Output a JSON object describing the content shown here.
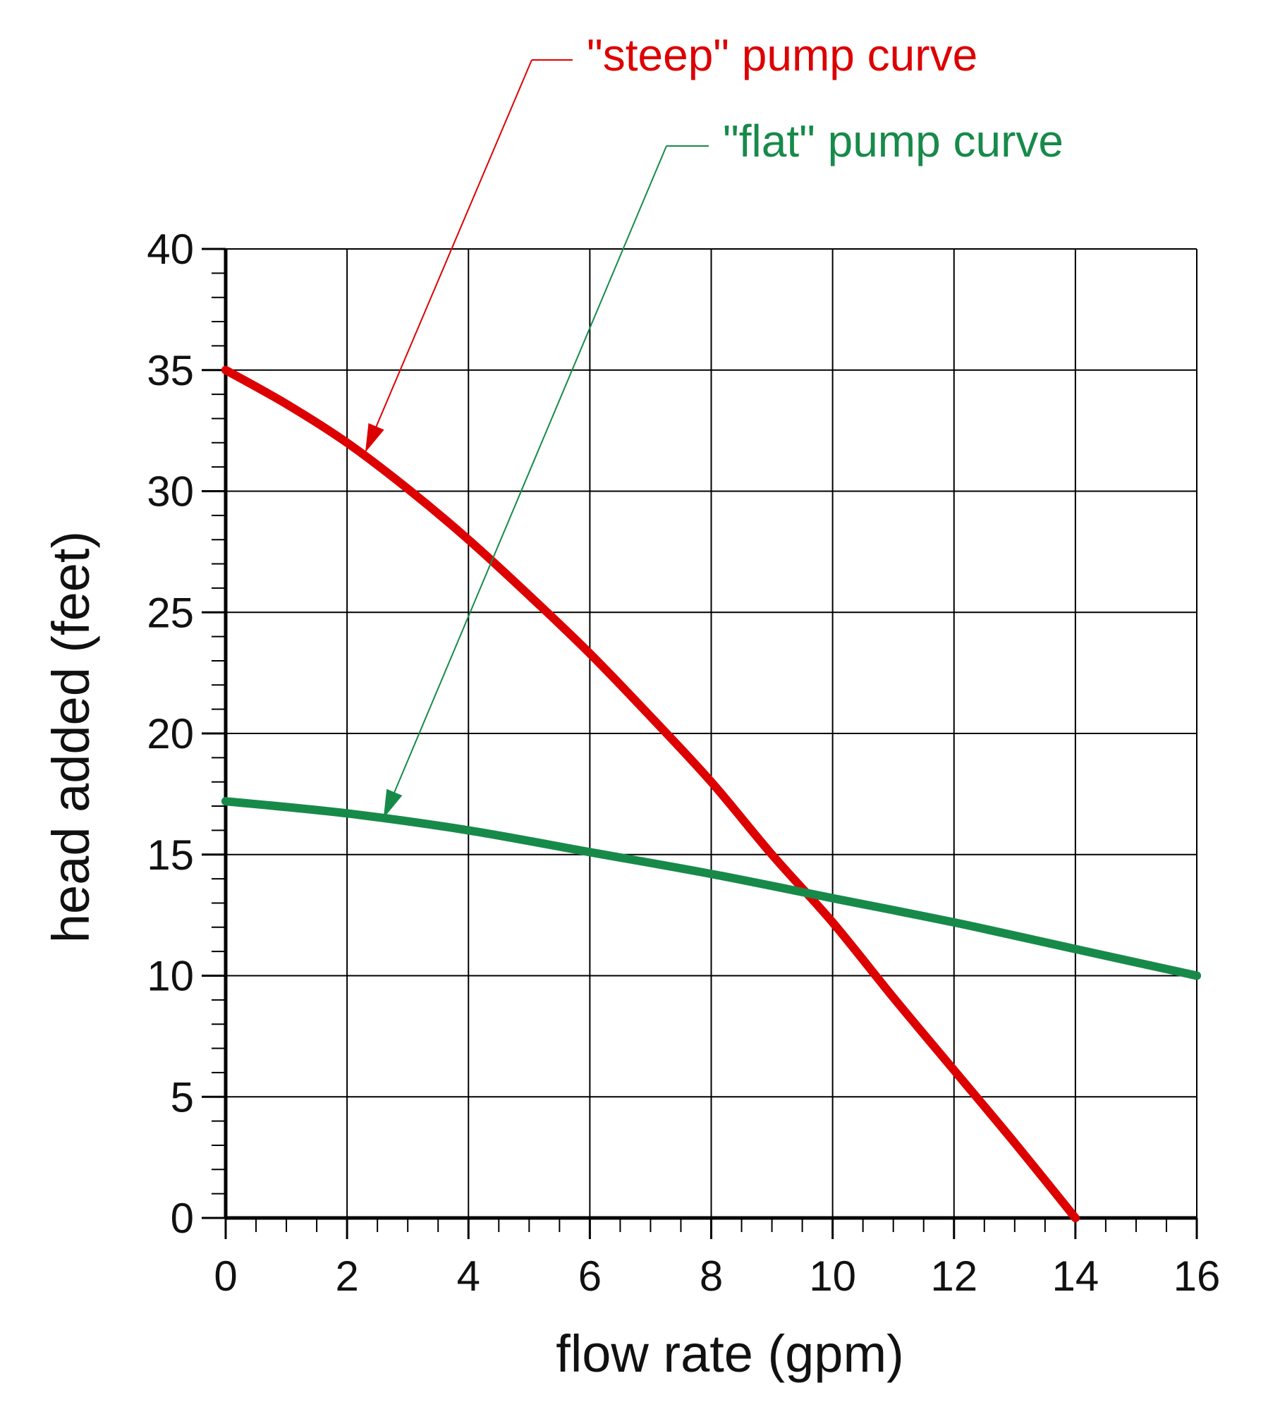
{
  "chart_data": {
    "type": "line",
    "title": "",
    "xlabel": "flow rate (gpm)",
    "ylabel": "head added (feet)",
    "xlim": [
      0,
      16
    ],
    "ylim": [
      0,
      40
    ],
    "x_ticks": [
      0,
      2,
      4,
      6,
      8,
      10,
      12,
      14,
      16
    ],
    "y_ticks": [
      0,
      5,
      10,
      15,
      20,
      25,
      30,
      35,
      40
    ],
    "x_tick_labels": [
      "0",
      "2",
      "4",
      "6",
      "8",
      "10",
      "12",
      "14",
      "16"
    ],
    "y_tick_labels": [
      "0",
      "5",
      "10",
      "15",
      "20",
      "25",
      "30",
      "35",
      "40"
    ],
    "grid": true,
    "legend": "none",
    "series": [
      {
        "name": "\"steep\" pump curve",
        "color": "#dd0000",
        "points": [
          [
            0,
            35
          ],
          [
            1,
            33.6
          ],
          [
            2,
            32.0
          ],
          [
            3,
            30.1
          ],
          [
            4,
            28.0
          ],
          [
            5,
            25.7
          ],
          [
            6,
            23.3
          ],
          [
            7,
            20.7
          ],
          [
            8,
            18.0
          ],
          [
            9,
            15.0
          ],
          [
            10,
            12.2
          ],
          [
            11,
            9.1
          ],
          [
            12,
            6.1
          ],
          [
            13,
            3.1
          ],
          [
            14,
            0
          ]
        ]
      },
      {
        "name": "\"flat\" pump curve",
        "color": "#178a4a",
        "points": [
          [
            0,
            17.2
          ],
          [
            2,
            16.7
          ],
          [
            4,
            16.0
          ],
          [
            6,
            15.1
          ],
          [
            8,
            14.2
          ],
          [
            10,
            13.2
          ],
          [
            12,
            12.2
          ],
          [
            14,
            11.1
          ],
          [
            16,
            10.0
          ]
        ]
      }
    ],
    "annotations": [
      {
        "text": "\"steep\" pump curve",
        "color": "#dd0000",
        "points_to": [
          2.3,
          31.6
        ]
      },
      {
        "text": "\"flat\" pump curve",
        "color": "#178a4a",
        "points_to": [
          2.6,
          16.5
        ]
      }
    ]
  }
}
